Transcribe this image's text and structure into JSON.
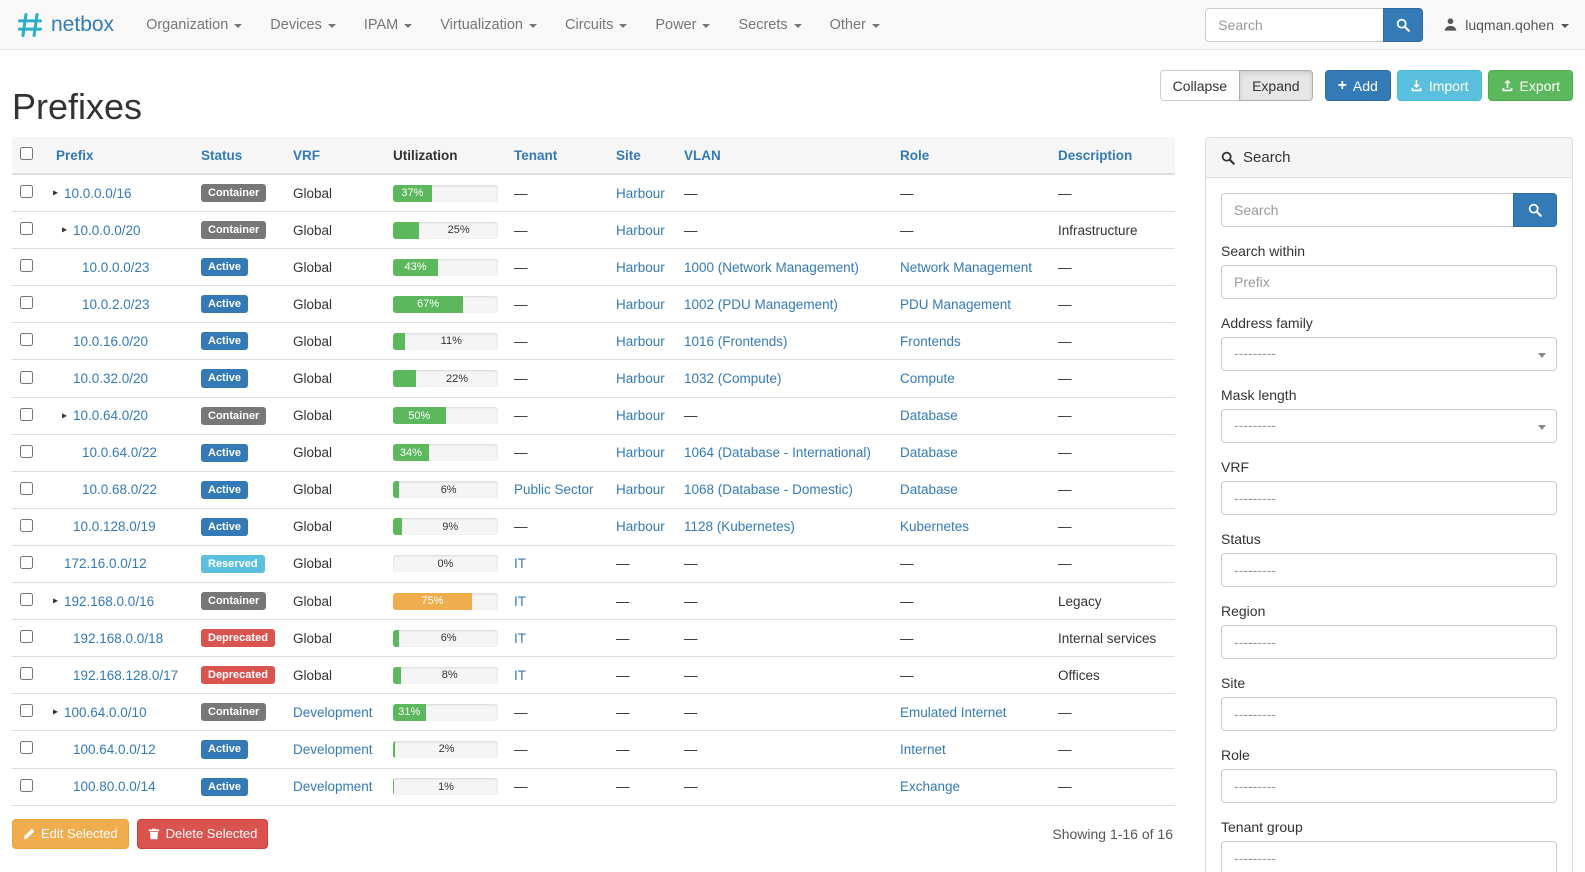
{
  "navbar": {
    "brand": "netbox",
    "menus": [
      "Organization",
      "Devices",
      "IPAM",
      "Virtualization",
      "Circuits",
      "Power",
      "Secrets",
      "Other"
    ],
    "search_placeholder": "Search",
    "user": "luqman.qohen"
  },
  "page": {
    "title": "Prefixes",
    "toolbar": {
      "collapse": "Collapse",
      "expand": "Expand",
      "add": "Add",
      "import": "Import",
      "export": "Export"
    },
    "showing": "Showing 1-16 of 16",
    "bulk": {
      "edit": "Edit Selected",
      "delete": "Delete Selected"
    }
  },
  "table": {
    "columns": [
      {
        "label": "Prefix",
        "sortable": true
      },
      {
        "label": "Status",
        "sortable": true
      },
      {
        "label": "VRF",
        "sortable": true
      },
      {
        "label": "Utilization",
        "sortable": false
      },
      {
        "label": "Tenant",
        "sortable": true
      },
      {
        "label": "Site",
        "sortable": true
      },
      {
        "label": "VLAN",
        "sortable": true
      },
      {
        "label": "Role",
        "sortable": true
      },
      {
        "label": "Description",
        "sortable": true
      }
    ],
    "rows": [
      {
        "prefix": "10.0.0.0/16",
        "depth": 0,
        "expandable": true,
        "status": "Container",
        "status_class": "default",
        "vrf": "Global",
        "vrf_is_link": false,
        "utilization": 37,
        "util_variant": "success",
        "tenant": "—",
        "site": "Harbour",
        "vlan": "—",
        "role": "—",
        "description": "—"
      },
      {
        "prefix": "10.0.0.0/20",
        "depth": 1,
        "expandable": true,
        "status": "Container",
        "status_class": "default",
        "vrf": "Global",
        "vrf_is_link": false,
        "utilization": 25,
        "util_variant": "success",
        "tenant": "—",
        "site": "Harbour",
        "vlan": "—",
        "role": "—",
        "description": "Infrastructure"
      },
      {
        "prefix": "10.0.0.0/23",
        "depth": 2,
        "expandable": false,
        "status": "Active",
        "status_class": "primary",
        "vrf": "Global",
        "vrf_is_link": false,
        "utilization": 43,
        "util_variant": "success",
        "tenant": "—",
        "site": "Harbour",
        "vlan": "1000 (Network Management)",
        "role": "Network Management",
        "description": "—"
      },
      {
        "prefix": "10.0.2.0/23",
        "depth": 2,
        "expandable": false,
        "status": "Active",
        "status_class": "primary",
        "vrf": "Global",
        "vrf_is_link": false,
        "utilization": 67,
        "util_variant": "success",
        "tenant": "—",
        "site": "Harbour",
        "vlan": "1002 (PDU Management)",
        "role": "PDU Management",
        "description": "—"
      },
      {
        "prefix": "10.0.16.0/20",
        "depth": 1,
        "expandable": false,
        "status": "Active",
        "status_class": "primary",
        "vrf": "Global",
        "vrf_is_link": false,
        "utilization": 11,
        "util_variant": "success",
        "tenant": "—",
        "site": "Harbour",
        "vlan": "1016 (Frontends)",
        "role": "Frontends",
        "description": "—"
      },
      {
        "prefix": "10.0.32.0/20",
        "depth": 1,
        "expandable": false,
        "status": "Active",
        "status_class": "primary",
        "vrf": "Global",
        "vrf_is_link": false,
        "utilization": 22,
        "util_variant": "success",
        "tenant": "—",
        "site": "Harbour",
        "vlan": "1032 (Compute)",
        "role": "Compute",
        "description": "—"
      },
      {
        "prefix": "10.0.64.0/20",
        "depth": 1,
        "expandable": true,
        "status": "Container",
        "status_class": "default",
        "vrf": "Global",
        "vrf_is_link": false,
        "utilization": 50,
        "util_variant": "success",
        "tenant": "—",
        "site": "Harbour",
        "vlan": "—",
        "role": "Database",
        "description": "—"
      },
      {
        "prefix": "10.0.64.0/22",
        "depth": 2,
        "expandable": false,
        "status": "Active",
        "status_class": "primary",
        "vrf": "Global",
        "vrf_is_link": false,
        "utilization": 34,
        "util_variant": "success",
        "tenant": "—",
        "site": "Harbour",
        "vlan": "1064 (Database - International)",
        "role": "Database",
        "description": "—"
      },
      {
        "prefix": "10.0.68.0/22",
        "depth": 2,
        "expandable": false,
        "status": "Active",
        "status_class": "primary",
        "vrf": "Global",
        "vrf_is_link": false,
        "utilization": 6,
        "util_variant": "success",
        "tenant": "Public Sector",
        "site": "Harbour",
        "vlan": "1068 (Database - Domestic)",
        "role": "Database",
        "description": "—"
      },
      {
        "prefix": "10.0.128.0/19",
        "depth": 1,
        "expandable": false,
        "status": "Active",
        "status_class": "primary",
        "vrf": "Global",
        "vrf_is_link": false,
        "utilization": 9,
        "util_variant": "success",
        "tenant": "—",
        "site": "Harbour",
        "vlan": "1128 (Kubernetes)",
        "role": "Kubernetes",
        "description": "—"
      },
      {
        "prefix": "172.16.0.0/12",
        "depth": 0,
        "expandable": false,
        "status": "Reserved",
        "status_class": "info",
        "vrf": "Global",
        "vrf_is_link": false,
        "utilization": 0,
        "util_variant": "success",
        "tenant": "IT",
        "site": "—",
        "vlan": "—",
        "role": "—",
        "description": "—"
      },
      {
        "prefix": "192.168.0.0/16",
        "depth": 0,
        "expandable": true,
        "status": "Container",
        "status_class": "default",
        "vrf": "Global",
        "vrf_is_link": false,
        "utilization": 75,
        "util_variant": "warning",
        "tenant": "IT",
        "site": "—",
        "vlan": "—",
        "role": "—",
        "description": "Legacy"
      },
      {
        "prefix": "192.168.0.0/18",
        "depth": 1,
        "expandable": false,
        "status": "Deprecated",
        "status_class": "danger",
        "vrf": "Global",
        "vrf_is_link": false,
        "utilization": 6,
        "util_variant": "success",
        "tenant": "IT",
        "site": "—",
        "vlan": "—",
        "role": "—",
        "description": "Internal services"
      },
      {
        "prefix": "192.168.128.0/17",
        "depth": 1,
        "expandable": false,
        "status": "Deprecated",
        "status_class": "danger",
        "vrf": "Global",
        "vrf_is_link": false,
        "utilization": 8,
        "util_variant": "success",
        "tenant": "IT",
        "site": "—",
        "vlan": "—",
        "role": "—",
        "description": "Offices"
      },
      {
        "prefix": "100.64.0.0/10",
        "depth": 0,
        "expandable": true,
        "status": "Container",
        "status_class": "default",
        "vrf": "Development",
        "vrf_is_link": true,
        "utilization": 31,
        "util_variant": "success",
        "tenant": "—",
        "site": "—",
        "vlan": "—",
        "role": "Emulated Internet",
        "description": "—"
      },
      {
        "prefix": "100.64.0.0/12",
        "depth": 1,
        "expandable": false,
        "status": "Active",
        "status_class": "primary",
        "vrf": "Development",
        "vrf_is_link": true,
        "utilization": 2,
        "util_variant": "success",
        "tenant": "—",
        "site": "—",
        "vlan": "—",
        "role": "Internet",
        "description": "—"
      },
      {
        "prefix": "100.80.0.0/14",
        "depth": 1,
        "expandable": false,
        "status": "Active",
        "status_class": "primary",
        "vrf": "Development",
        "vrf_is_link": true,
        "utilization": 1,
        "util_variant": "success",
        "tenant": "—",
        "site": "—",
        "vlan": "—",
        "role": "Exchange",
        "description": "—"
      }
    ]
  },
  "filter_panel": {
    "title": "Search",
    "search_placeholder": "Search",
    "fields": [
      {
        "label": "Search within",
        "placeholder": "Prefix",
        "type": "text"
      },
      {
        "label": "Address family",
        "placeholder": "---------",
        "type": "select"
      },
      {
        "label": "Mask length",
        "placeholder": "---------",
        "type": "select"
      },
      {
        "label": "VRF",
        "placeholder": "---------",
        "type": "text"
      },
      {
        "label": "Status",
        "placeholder": "---------",
        "type": "text"
      },
      {
        "label": "Region",
        "placeholder": "---------",
        "type": "text"
      },
      {
        "label": "Site",
        "placeholder": "---------",
        "type": "text"
      },
      {
        "label": "Role",
        "placeholder": "---------",
        "type": "text"
      },
      {
        "label": "Tenant group",
        "placeholder": "---------",
        "type": "text"
      }
    ]
  },
  "colors": {
    "link": "#337ab7",
    "badge_default": "#777777",
    "badge_primary": "#337ab7",
    "badge_info": "#5bc0de",
    "badge_danger": "#d9534f",
    "bar_success": "#5cb85c",
    "bar_warning": "#f0ad4e",
    "btn_primary": "#337ab7",
    "btn_info": "#5bc0de",
    "btn_success": "#5cb85c",
    "btn_warning": "#f0ad4e",
    "btn_danger": "#d9534f",
    "brand_teal": "#2bafc4"
  }
}
